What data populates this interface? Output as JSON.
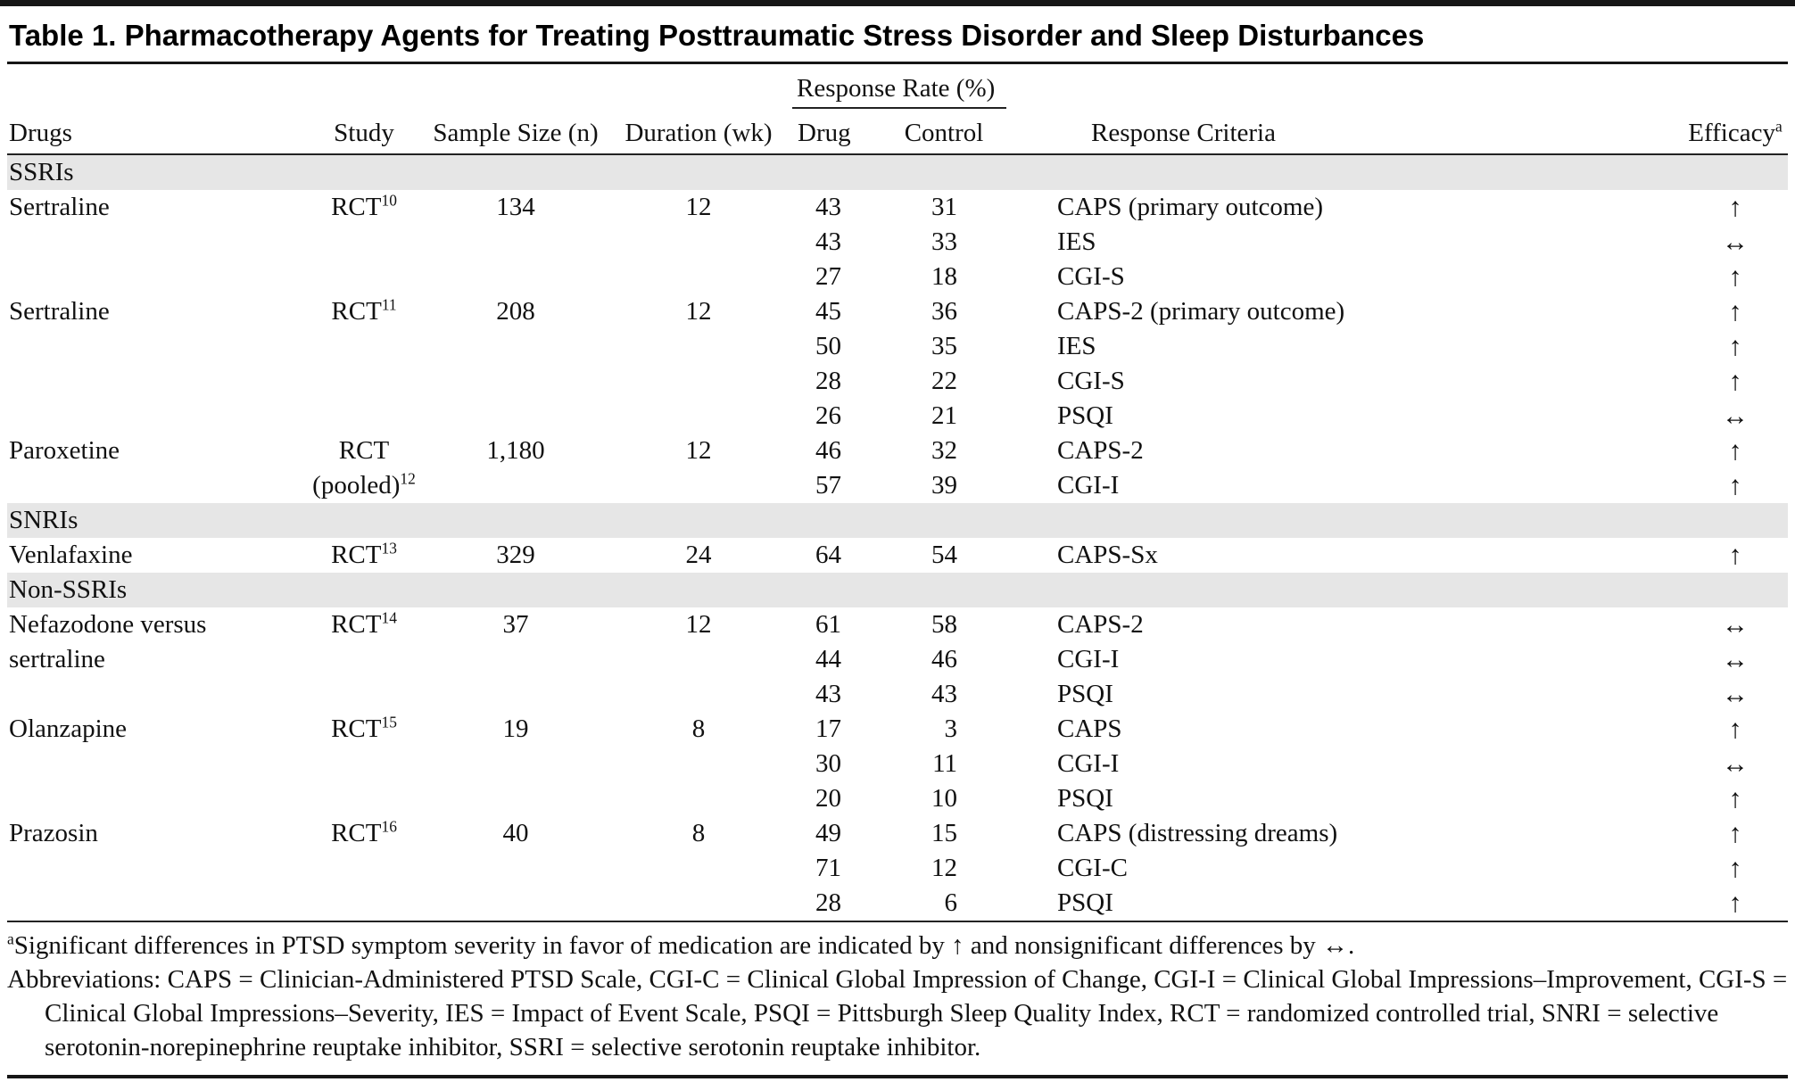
{
  "title": "Table 1. Pharmacotherapy Agents for Treating Posttraumatic Stress Disorder and Sleep Disturbances",
  "columns": {
    "drugs": "Drugs",
    "study": "Study",
    "sample_size": "Sample Size (n)",
    "duration": "Duration (wk)",
    "response_rate": "Response Rate (%)",
    "drug": "Drug",
    "control": "Control",
    "response_criteria": "Response Criteria",
    "efficacy": "Efficacy",
    "efficacy_sup": "a"
  },
  "section_band_color": "#e6e6e6",
  "sections": [
    {
      "label": "SSRIs",
      "rows": [
        {
          "drug": "Sertraline",
          "study": "RCT",
          "study_ref": "10",
          "study_note": "",
          "sample_size": "134",
          "duration": "12",
          "measures": [
            {
              "drug": "43",
              "control": "31",
              "criteria": "CAPS (primary outcome)",
              "efficacy": "↑"
            },
            {
              "drug": "43",
              "control": "33",
              "criteria": "IES",
              "efficacy": "↔"
            },
            {
              "drug": "27",
              "control": "18",
              "criteria": "CGI-S",
              "efficacy": "↑"
            }
          ]
        },
        {
          "drug": "Sertraline",
          "study": "RCT",
          "study_ref": "11",
          "study_note": "",
          "sample_size": "208",
          "duration": "12",
          "measures": [
            {
              "drug": "45",
              "control": "36",
              "criteria": "CAPS-2 (primary outcome)",
              "efficacy": "↑"
            },
            {
              "drug": "50",
              "control": "35",
              "criteria": "IES",
              "efficacy": "↑"
            },
            {
              "drug": "28",
              "control": "22",
              "criteria": "CGI-S",
              "efficacy": "↑"
            },
            {
              "drug": "26",
              "control": "21",
              "criteria": "PSQI",
              "efficacy": "↔"
            }
          ]
        },
        {
          "drug": "Paroxetine",
          "study": "RCT",
          "study_ref": "12",
          "study_note": "(pooled)",
          "sample_size": "1,180",
          "duration": "12",
          "measures": [
            {
              "drug": "46",
              "control": "32",
              "criteria": "CAPS-2",
              "efficacy": "↑"
            },
            {
              "drug": "57",
              "control": "39",
              "criteria": "CGI-I",
              "efficacy": "↑"
            }
          ]
        }
      ]
    },
    {
      "label": "SNRIs",
      "rows": [
        {
          "drug": "Venlafaxine",
          "study": "RCT",
          "study_ref": "13",
          "study_note": "",
          "sample_size": "329",
          "duration": "24",
          "measures": [
            {
              "drug": "64",
              "control": "54",
              "criteria": "CAPS-Sx",
              "efficacy": "↑"
            }
          ]
        }
      ]
    },
    {
      "label": "Non-SSRIs",
      "rows": [
        {
          "drug": "Nefazodone versus sertraline",
          "study": "RCT",
          "study_ref": "14",
          "study_note": "",
          "sample_size": "37",
          "duration": "12",
          "measures": [
            {
              "drug": "61",
              "control": "58",
              "criteria": "CAPS-2",
              "efficacy": "↔"
            },
            {
              "drug": "44",
              "control": "46",
              "criteria": "CGI-I",
              "efficacy": "↔"
            },
            {
              "drug": "43",
              "control": "43",
              "criteria": "PSQI",
              "efficacy": "↔"
            }
          ]
        },
        {
          "drug": "Olanzapine",
          "study": "RCT",
          "study_ref": "15",
          "study_note": "",
          "sample_size": "19",
          "duration": "8",
          "measures": [
            {
              "drug": "17",
              "control": "3",
              "criteria": "CAPS",
              "efficacy": "↑"
            },
            {
              "drug": "30",
              "control": "11",
              "criteria": "CGI-I",
              "efficacy": "↔"
            },
            {
              "drug": "20",
              "control": "10",
              "criteria": "PSQI",
              "efficacy": "↑"
            }
          ]
        },
        {
          "drug": "Prazosin",
          "study": "RCT",
          "study_ref": "16",
          "study_note": "",
          "sample_size": "40",
          "duration": "8",
          "measures": [
            {
              "drug": "49",
              "control": "15",
              "criteria": "CAPS (distressing dreams)",
              "efficacy": "↑"
            },
            {
              "drug": "71",
              "control": "12",
              "criteria": "CGI-C",
              "efficacy": "↑"
            },
            {
              "drug": "28",
              "control": "6",
              "criteria": "PSQI",
              "efficacy": "↑"
            }
          ]
        }
      ]
    }
  ],
  "footnotes": {
    "marker": "a",
    "significance": "Significant differences in PTSD symptom severity in favor of medication are indicated by ↑ and nonsignificant differences by ↔.",
    "abbreviations": "Abbreviations: CAPS = Clinician-Administered PTSD Scale, CGI-C = Clinical Global Impression of Change, CGI-I = Clinical Global Impressions–Improvement, CGI-S = Clinical Global Impressions–Severity, IES = Impact of Event Scale, PSQI = Pittsburgh Sleep Quality Index, RCT = randomized controlled trial, SNRI = selective serotonin-norepinephrine reuptake inhibitor, SSRI = selective serotonin reuptake inhibitor."
  }
}
